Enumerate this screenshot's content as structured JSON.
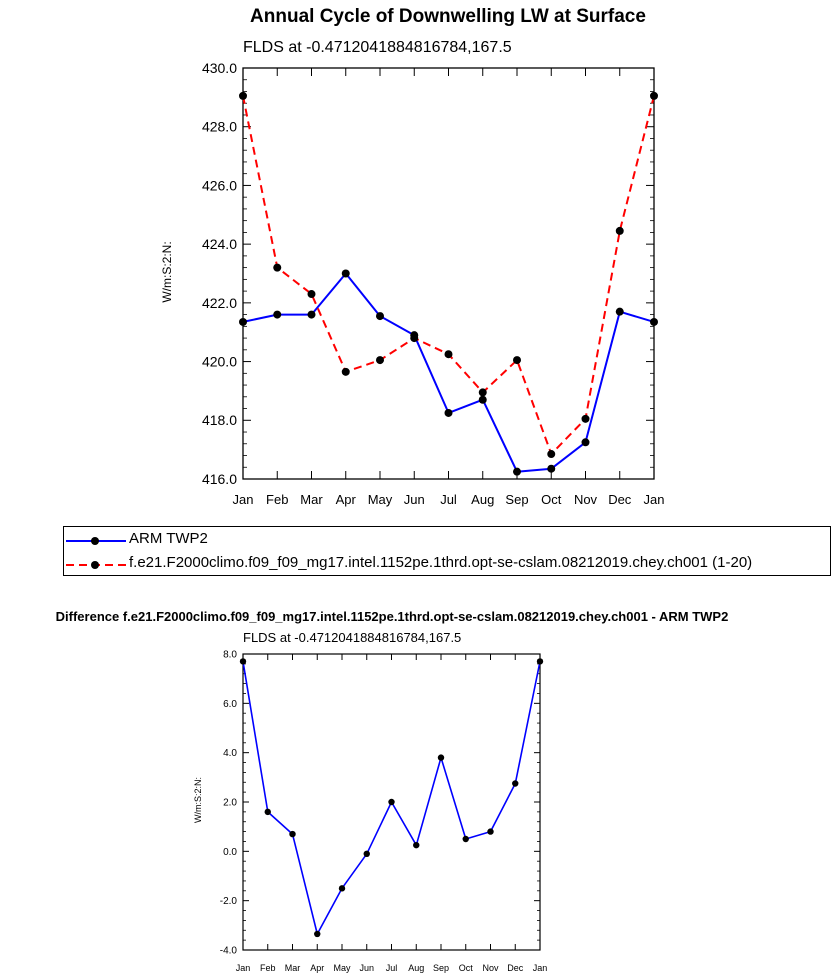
{
  "chart_data": [
    {
      "type": "line",
      "title": "Annual Cycle of Downwelling LW at Surface",
      "subtitle": "FLDS at -0.4712041884816784,167.5",
      "xlabel": "",
      "ylabel": "W/m:S:2:N:",
      "categories": [
        "Jan",
        "Feb",
        "Mar",
        "Apr",
        "May",
        "Jun",
        "Jul",
        "Aug",
        "Sep",
        "Oct",
        "Nov",
        "Dec",
        "Jan"
      ],
      "ylim": [
        416.0,
        430.0
      ],
      "yticks": [
        "416.0",
        "418.0",
        "420.0",
        "422.0",
        "424.0",
        "426.0",
        "428.0",
        "430.0"
      ],
      "grid": false,
      "legend_position": "below",
      "series": [
        {
          "name": "ARM TWP2",
          "color": "#0000ff",
          "dash": "solid",
          "values": [
            421.35,
            421.6,
            421.6,
            423.0,
            421.55,
            420.9,
            418.25,
            418.7,
            416.25,
            416.35,
            417.25,
            421.7,
            421.35
          ]
        },
        {
          "name": "f.e21.F2000climo.f09_f09_mg17.intel.1152pe.1thrd.opt-se-cslam.08212019.chey.ch001 (1-20)",
          "color": "#ff0000",
          "dash": "dashed",
          "values": [
            429.05,
            423.2,
            422.3,
            419.65,
            420.05,
            420.8,
            420.25,
            418.95,
            420.05,
            416.85,
            418.05,
            424.45,
            429.05
          ]
        }
      ]
    },
    {
      "type": "line",
      "title": "Difference f.e21.F2000climo.f09_f09_mg17.intel.1152pe.1thrd.opt-se-cslam.08212019.chey.ch001 - ARM TWP2",
      "subtitle": "FLDS at -0.4712041884816784,167.5",
      "xlabel": "",
      "ylabel": "W/m:S:2:N:",
      "categories": [
        "Jan",
        "Feb",
        "Mar",
        "Apr",
        "May",
        "Jun",
        "Jul",
        "Aug",
        "Sep",
        "Oct",
        "Nov",
        "Dec",
        "Jan"
      ],
      "ylim": [
        -4.0,
        8.0
      ],
      "yticks": [
        "-4.0",
        "-2.0",
        "0.0",
        "2.0",
        "4.0",
        "6.0",
        "8.0"
      ],
      "grid": false,
      "series": [
        {
          "name": "Difference",
          "color": "#0000ff",
          "dash": "solid",
          "values": [
            7.7,
            1.6,
            0.7,
            -3.35,
            -1.5,
            -0.1,
            2.0,
            0.25,
            3.8,
            0.5,
            0.8,
            2.75,
            7.7
          ]
        }
      ]
    }
  ]
}
